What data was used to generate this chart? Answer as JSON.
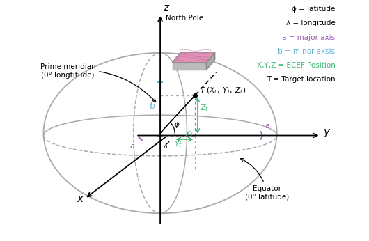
{
  "bg_color": "#ffffff",
  "legend_lines": [
    {
      "text": "ϕ = latitude",
      "color": "#000000"
    },
    {
      "text": "λ = longitude",
      "color": "#000000"
    },
    {
      "text": "a = major axis",
      "color": "#9b59b6"
    },
    {
      "text": "b = minor axsis",
      "color": "#6ab0d4"
    },
    {
      "text": "X,Y,Z = ECEF Position",
      "color": "#3cb371"
    },
    {
      "text": "T = Target location",
      "color": "#000000"
    }
  ],
  "ellipse_color": "#aaaaaa",
  "b_line_color": "#6ab0d4",
  "a_arc_color": "#9b59b6",
  "green_color": "#3cb371",
  "terrain_pink": "#e085b0",
  "terrain_gray": "#aaaaaa"
}
